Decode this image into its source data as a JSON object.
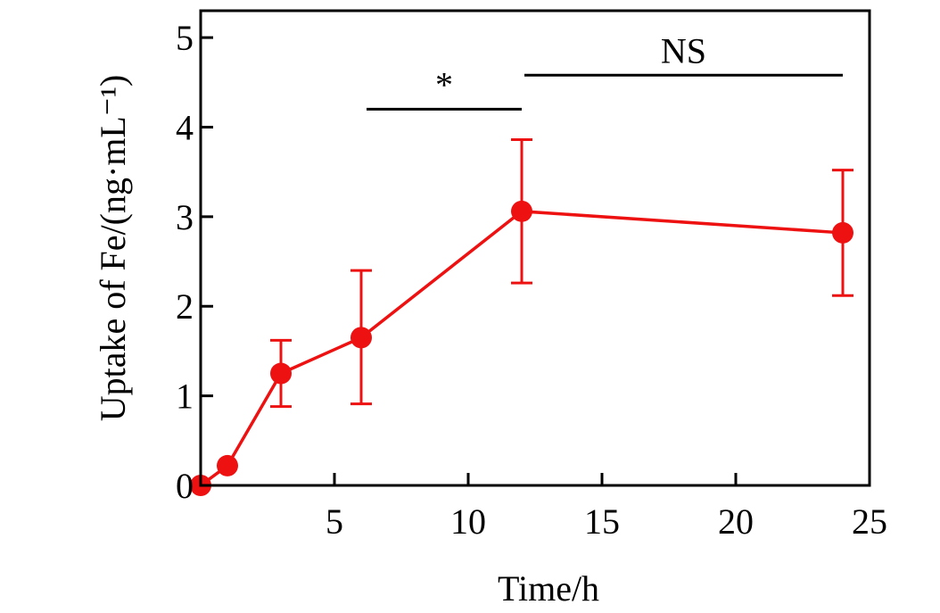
{
  "chart_data": {
    "type": "line",
    "xlabel": "Time/h",
    "ylabel": "Uptake of Fe/(ng·mL⁻¹)",
    "xlim": [
      0,
      25
    ],
    "ylim": [
      0,
      5.3
    ],
    "xticks": [
      5,
      10,
      15,
      20,
      25
    ],
    "xtick_labels": [
      "5",
      "10",
      "15",
      "20",
      "25"
    ],
    "yticks": [
      0,
      1,
      2,
      3,
      4,
      5
    ],
    "ytick_labels": [
      "0",
      "1",
      "2",
      "3",
      "4",
      "5"
    ],
    "grid": false,
    "series": [
      {
        "color": "#ee1111",
        "x": [
          0,
          1,
          3,
          6,
          12,
          24
        ],
        "y": [
          0,
          0.22,
          1.25,
          1.65,
          3.06,
          2.82
        ],
        "err_low": [
          null,
          null,
          0.88,
          0.91,
          2.26,
          2.12
        ],
        "err_high": [
          null,
          null,
          1.62,
          2.4,
          3.86,
          3.52
        ]
      }
    ],
    "annotations": [
      {
        "label": "*",
        "x_start": 6.2,
        "x_end": 12,
        "y": 4.2
      },
      {
        "label": "NS",
        "x_start": 12.1,
        "x_end": 24,
        "y": 4.58
      }
    ]
  }
}
